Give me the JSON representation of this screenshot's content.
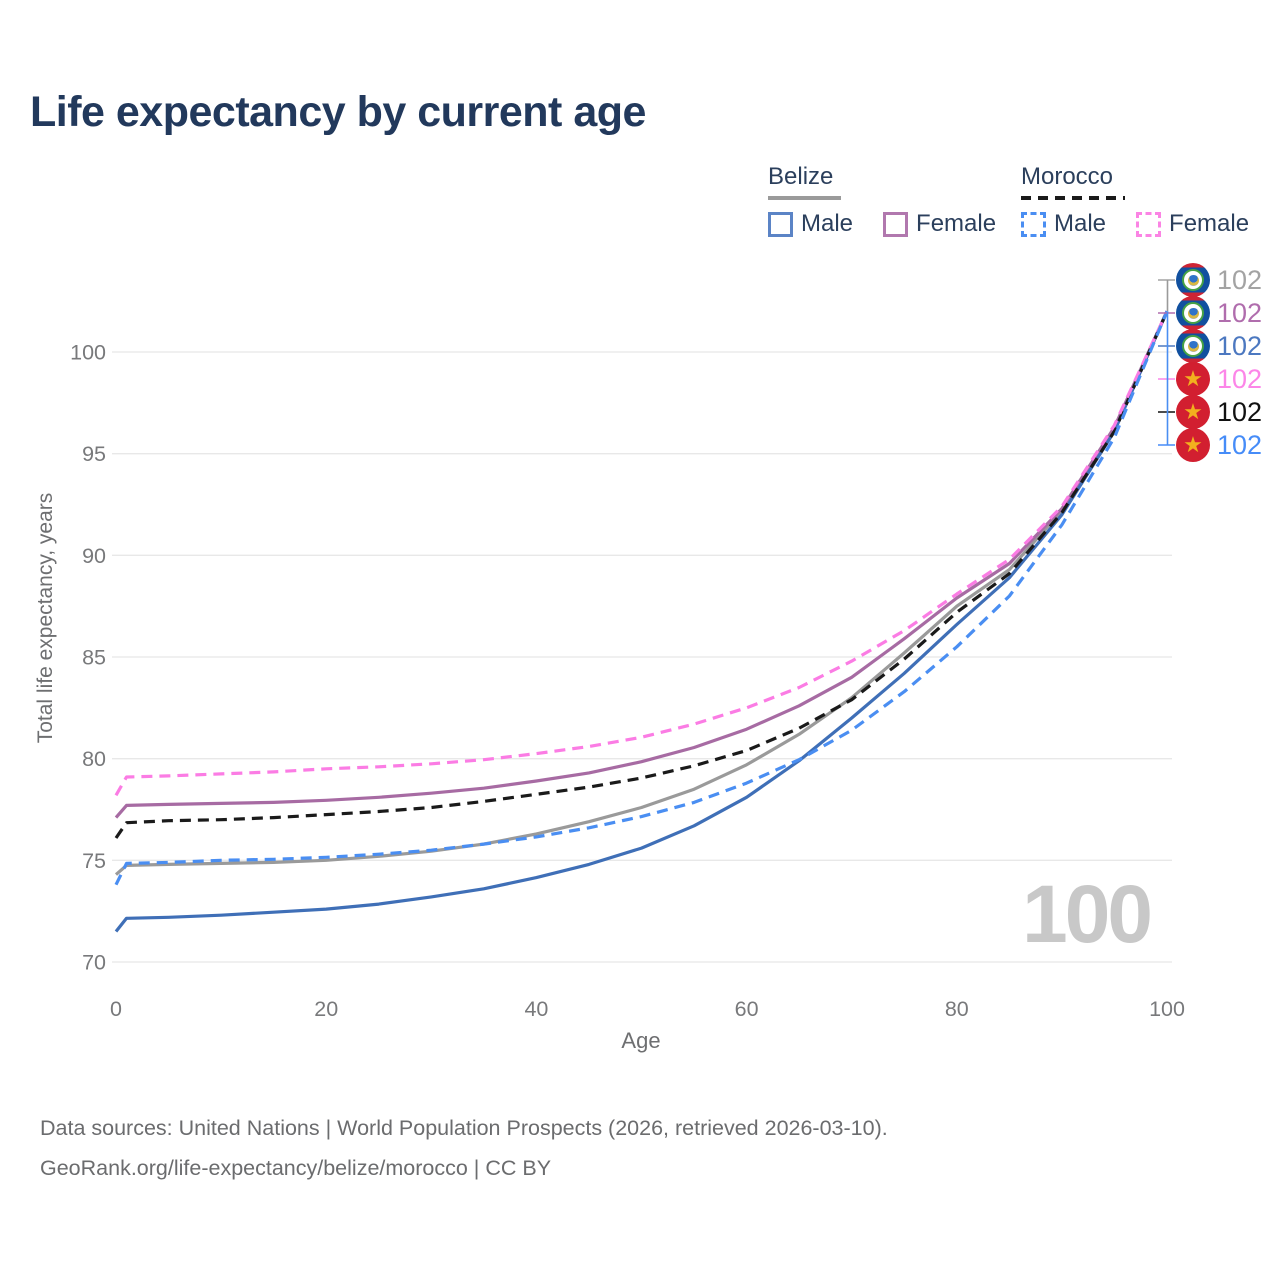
{
  "title": "Life expectancy by current age",
  "current_age_label": "100",
  "legend": {
    "groups": [
      {
        "label": "Belize",
        "line_style": "solid",
        "underline_color": "#9a9a9a",
        "items": [
          {
            "label": "Male",
            "color": "#5b84c6",
            "dash": false
          },
          {
            "label": "Female",
            "color": "#b178ae",
            "dash": false
          }
        ]
      },
      {
        "label": "Morocco",
        "line_style": "dashed",
        "underline_color": "#1a1a1a",
        "items": [
          {
            "label": "Male",
            "color": "#4a8ef2",
            "dash": true
          },
          {
            "label": "Female",
            "color": "#fb84e4",
            "dash": true
          }
        ]
      }
    ]
  },
  "chart_data": {
    "type": "line",
    "title": "Life expectancy by current age",
    "xlabel": "Age",
    "ylabel": "Total life expectancy, years",
    "xlim": [
      0,
      100
    ],
    "ylim": [
      70,
      103
    ],
    "xticks": [
      0,
      20,
      40,
      60,
      80,
      100
    ],
    "yticks": [
      70,
      75,
      80,
      85,
      90,
      95,
      100
    ],
    "grid": "horizontal",
    "legend_position": "top-right",
    "x": [
      0,
      1,
      5,
      10,
      15,
      20,
      25,
      30,
      35,
      40,
      45,
      50,
      55,
      60,
      65,
      70,
      75,
      80,
      85,
      90,
      95,
      100
    ],
    "series": [
      {
        "name": "Belize",
        "country": "belize",
        "sex": "all",
        "color": "#9a9a9a",
        "dash": false,
        "values": [
          74.3,
          74.75,
          74.8,
          74.85,
          74.9,
          75.0,
          75.2,
          75.45,
          75.8,
          76.3,
          76.9,
          77.6,
          78.5,
          79.7,
          81.2,
          83.0,
          85.2,
          87.5,
          89.3,
          92.2,
          96.2,
          102
        ]
      },
      {
        "name": "Belize Female",
        "country": "belize",
        "sex": "female",
        "color": "#a76ba3",
        "dash": false,
        "values": [
          77.1,
          77.7,
          77.75,
          77.8,
          77.85,
          77.95,
          78.1,
          78.3,
          78.55,
          78.9,
          79.3,
          79.85,
          80.55,
          81.45,
          82.6,
          84.0,
          85.9,
          87.9,
          89.6,
          92.3,
          96.3,
          102
        ]
      },
      {
        "name": "Belize Male",
        "country": "belize",
        "sex": "male",
        "color": "#3f6fb7",
        "dash": false,
        "values": [
          71.5,
          72.15,
          72.2,
          72.3,
          72.45,
          72.6,
          72.85,
          73.2,
          73.6,
          74.15,
          74.8,
          75.6,
          76.7,
          78.1,
          79.9,
          82.0,
          84.2,
          86.6,
          88.9,
          92.0,
          96.1,
          102
        ]
      },
      {
        "name": "Morocco",
        "country": "morocco",
        "sex": "all",
        "color": "#1a1a1a",
        "dash": true,
        "values": [
          76.1,
          76.85,
          76.95,
          77.0,
          77.1,
          77.25,
          77.4,
          77.6,
          77.9,
          78.25,
          78.6,
          79.05,
          79.65,
          80.4,
          81.5,
          82.9,
          84.9,
          87.2,
          89.1,
          92.1,
          96.1,
          102
        ]
      },
      {
        "name": "Morocco Female",
        "country": "morocco",
        "sex": "female",
        "color": "#fb7ce4",
        "dash": true,
        "values": [
          78.2,
          79.1,
          79.15,
          79.25,
          79.35,
          79.5,
          79.6,
          79.75,
          79.95,
          80.25,
          80.6,
          81.05,
          81.7,
          82.5,
          83.5,
          84.8,
          86.3,
          88.1,
          89.8,
          92.4,
          96.4,
          102
        ]
      },
      {
        "name": "Morocco Male",
        "country": "morocco",
        "sex": "male",
        "color": "#4a8ef2",
        "dash": true,
        "values": [
          73.8,
          74.85,
          74.9,
          75.0,
          75.05,
          75.15,
          75.3,
          75.5,
          75.8,
          76.15,
          76.6,
          77.15,
          77.85,
          78.8,
          79.95,
          81.4,
          83.3,
          85.5,
          88.0,
          91.5,
          95.8,
          102
        ]
      }
    ],
    "end_labels": {
      "age": 100,
      "rows": [
        {
          "country": "belize",
          "series": "Belize",
          "value": "102",
          "color": "#a3a3a3"
        },
        {
          "country": "belize",
          "series": "Belize Female",
          "value": "102",
          "color": "#b06dad"
        },
        {
          "country": "belize",
          "series": "Belize Male",
          "value": "102",
          "color": "#4c78c0"
        },
        {
          "country": "morocco",
          "series": "Morocco Female",
          "value": "102",
          "color": "#fc86e8"
        },
        {
          "country": "morocco",
          "series": "Morocco",
          "value": "102",
          "color": "#111111"
        },
        {
          "country": "morocco",
          "series": "Morocco Male",
          "value": "102",
          "color": "#468cf8"
        }
      ],
      "connector_top_color": "#9a9a9a",
      "connector_bottom_color": "#4a8ef2"
    }
  },
  "footer": {
    "line1": "Data sources: United Nations | World Population Prospects (2026, retrieved 2026-03-10).",
    "line2": "GeoRank.org/life-expectancy/belize/morocco | CC BY"
  }
}
